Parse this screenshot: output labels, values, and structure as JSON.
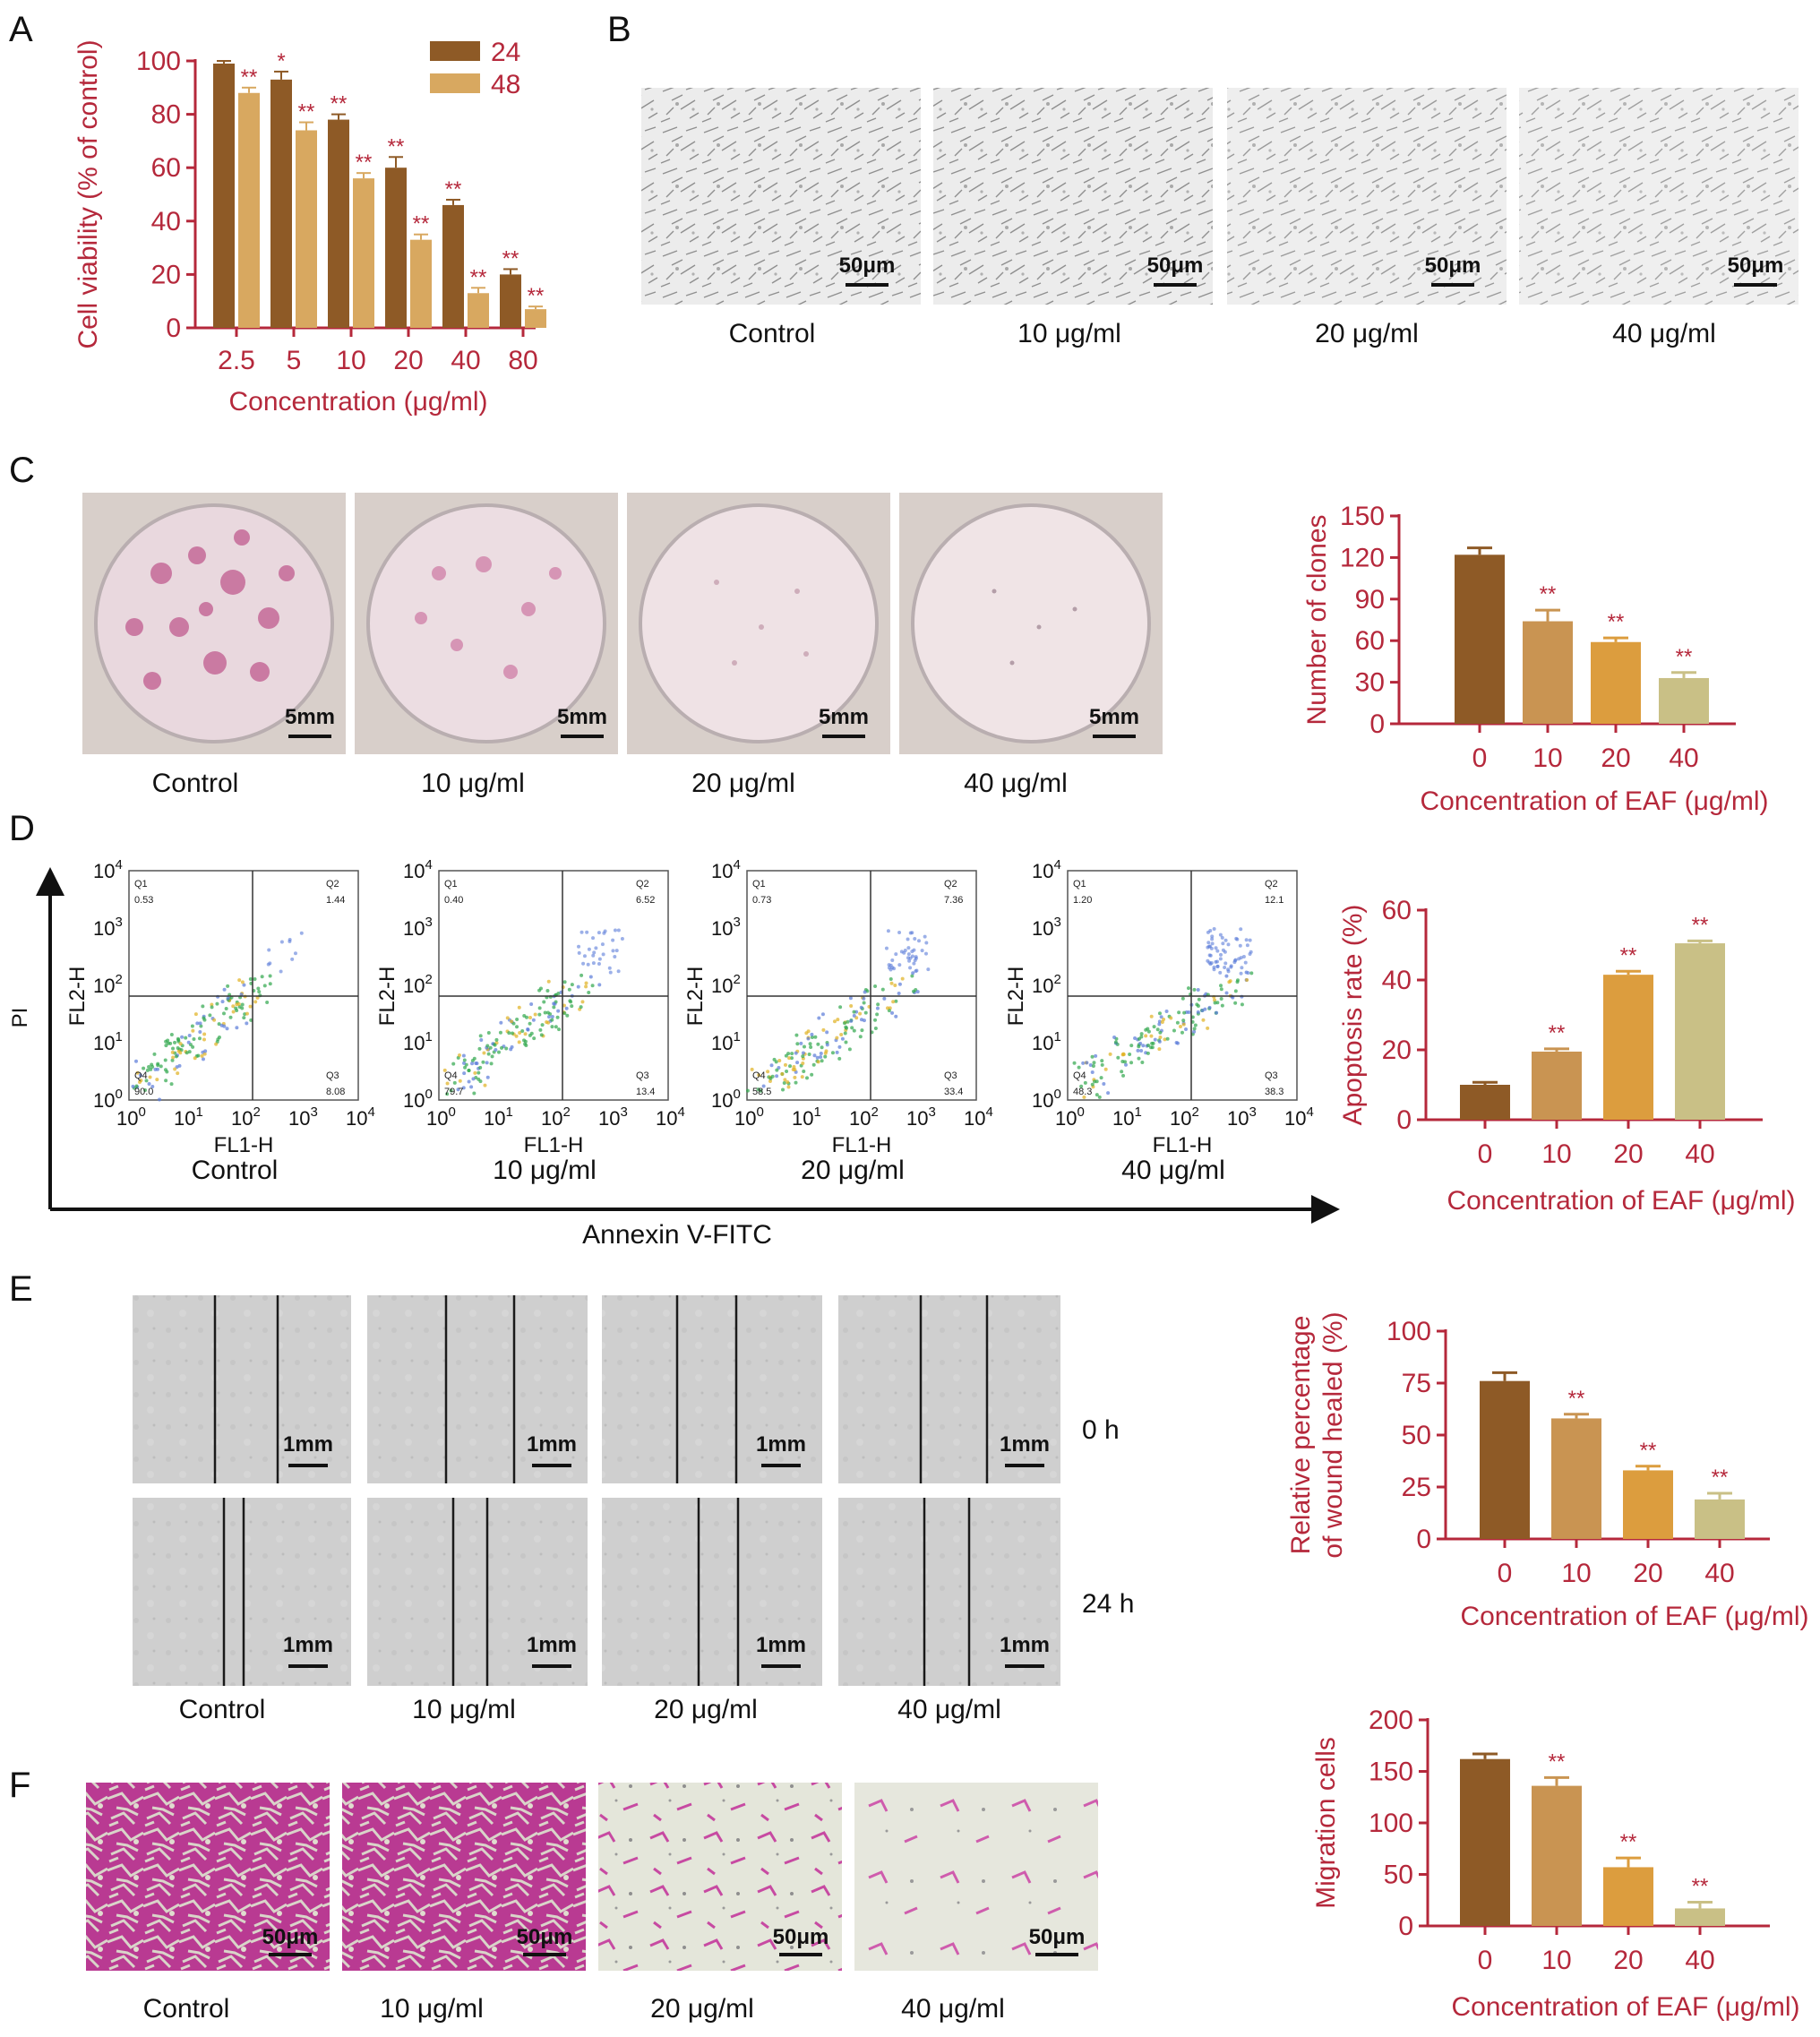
{
  "panels": {
    "A": "A",
    "B": "B",
    "C": "C",
    "D": "D",
    "E": "E",
    "F": "F"
  },
  "colors": {
    "axis": "#b5283b",
    "sig": "#b5283b",
    "c24": "#8e5a26",
    "c48": "#d8a860",
    "c0": "#8e5a26",
    "c10": "#c99452",
    "c20": "#dc9d3e",
    "c40": "#c9c086"
  },
  "panelB": {
    "scale": "50μm",
    "labels": [
      "Control",
      "10 μg/ml",
      "20 μg/ml",
      "40 μg/ml"
    ]
  },
  "panelC": {
    "scale": "5mm",
    "labels": [
      "Control",
      "10 μg/ml",
      "20 μg/ml",
      "40 μg/ml"
    ]
  },
  "panelD": {
    "y_axis": "PI",
    "x_axis": "Annexin V-FITC",
    "plot_ylabel": "FL2-H",
    "plot_xlabel": "FL1-H",
    "tick_base": "10",
    "tick_exps": [
      "0",
      "1",
      "2",
      "3",
      "4"
    ],
    "quadrant_names": [
      "Q1",
      "Q2",
      "Q3",
      "Q4"
    ],
    "plots": [
      {
        "label": "Control",
        "q": [
          "0.53",
          "1.44",
          "8.08",
          "90.0"
        ]
      },
      {
        "label": "10 μg/ml",
        "q": [
          "0.40",
          "6.52",
          "13.4",
          "79.7"
        ]
      },
      {
        "label": "20 μg/ml",
        "q": [
          "0.73",
          "7.36",
          "33.4",
          "58.5"
        ]
      },
      {
        "label": "40 μg/ml",
        "q": [
          "1.20",
          "12.1",
          "38.3",
          "48.3"
        ]
      }
    ]
  },
  "panelE": {
    "scale": "1mm",
    "times": [
      "0 h",
      "24 h"
    ],
    "labels": [
      "Control",
      "10 μg/ml",
      "20 μg/ml",
      "40 μg/ml"
    ]
  },
  "panelF": {
    "scale": "50μm",
    "labels": [
      "Control",
      "10 μg/ml",
      "20 μg/ml",
      "40 μg/ml"
    ]
  },
  "chart_data": [
    {
      "id": "A",
      "type": "bar",
      "categories": [
        "2.5",
        "5",
        "10",
        "20",
        "40",
        "80"
      ],
      "series": [
        {
          "name": "24",
          "values": [
            99,
            93,
            78,
            60,
            46,
            20
          ],
          "errors": [
            1,
            3,
            2,
            4,
            2,
            2
          ],
          "sig": [
            "",
            "*",
            "**",
            "**",
            "**",
            "**"
          ]
        },
        {
          "name": "48",
          "values": [
            88,
            74,
            56,
            33,
            13,
            7
          ],
          "errors": [
            2,
            3,
            2,
            2,
            2,
            1
          ],
          "sig": [
            "**",
            "**",
            "**",
            "**",
            "**",
            "**"
          ]
        }
      ],
      "ylabel": "Cell viability (% of control)",
      "xlabel": "Concentration (μg/ml)",
      "ylim": [
        0,
        100
      ],
      "yticks": [
        "0",
        "20",
        "40",
        "60",
        "80",
        "100"
      ],
      "legend": "top-right"
    },
    {
      "id": "C",
      "type": "bar",
      "categories": [
        "0",
        "10",
        "20",
        "40"
      ],
      "values": [
        122,
        74,
        59,
        33
      ],
      "errors": [
        5,
        8,
        3,
        4
      ],
      "sig": [
        "",
        "**",
        "**",
        "**"
      ],
      "ylabel": "Number of clones",
      "xlabel": "Concentration of EAF (μg/ml)",
      "ylim": [
        0,
        150
      ],
      "yticks": [
        "0",
        "30",
        "60",
        "90",
        "120",
        "150"
      ]
    },
    {
      "id": "D",
      "type": "bar",
      "categories": [
        "0",
        "10",
        "20",
        "40"
      ],
      "values": [
        10,
        19.5,
        41.5,
        50.5
      ],
      "errors": [
        0.7,
        0.8,
        1,
        0.7
      ],
      "sig": [
        "",
        "**",
        "**",
        "**"
      ],
      "ylabel": "Apoptosis rate (%)",
      "xlabel": "Concentration of EAF (μg/ml)",
      "ylim": [
        0,
        60
      ],
      "yticks": [
        "0",
        "20",
        "40",
        "60"
      ]
    },
    {
      "id": "E",
      "type": "bar",
      "categories": [
        "0",
        "10",
        "20",
        "40"
      ],
      "values": [
        76,
        58,
        33,
        19
      ],
      "errors": [
        4,
        2,
        2,
        3
      ],
      "sig": [
        "",
        "**",
        "**",
        "**"
      ],
      "ylabel": [
        "Relative percentage",
        "of wound healed (%)"
      ],
      "xlabel": "Concentration of EAF (μg/ml)",
      "ylim": [
        0,
        100
      ],
      "yticks": [
        "0",
        "25",
        "50",
        "75",
        "100"
      ]
    },
    {
      "id": "F",
      "type": "bar",
      "categories": [
        "0",
        "10",
        "20",
        "40"
      ],
      "values": [
        162,
        136,
        57,
        17
      ],
      "errors": [
        5,
        8,
        9,
        6
      ],
      "sig": [
        "",
        "**",
        "**",
        "**"
      ],
      "ylabel": "Migration cells",
      "xlabel": "Concentration of EAF (μg/ml)",
      "ylim": [
        0,
        200
      ],
      "yticks": [
        "0",
        "50",
        "100",
        "150",
        "200"
      ]
    }
  ]
}
